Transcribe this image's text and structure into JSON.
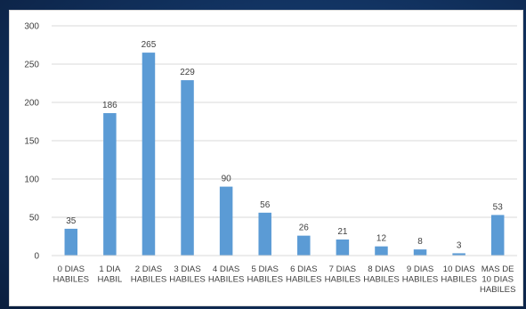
{
  "chart_data": {
    "type": "bar",
    "categories": [
      [
        "0 DIAS",
        "HABILES"
      ],
      [
        "1 DIA",
        "HABIL"
      ],
      [
        "2 DIAS",
        "HABILES"
      ],
      [
        "3 DIAS",
        "HABILES"
      ],
      [
        "4 DIAS",
        "HABILES"
      ],
      [
        "5 DIAS",
        "HABILES"
      ],
      [
        "6 DIAS",
        "HABILES"
      ],
      [
        "7 DIAS",
        "HABILES"
      ],
      [
        "8 DIAS",
        "HABILES"
      ],
      [
        "9 DIAS",
        "HABILES"
      ],
      [
        "10 DIAS",
        "HABILES"
      ],
      [
        "MAS DE",
        "10 DIAS",
        "HABILES"
      ]
    ],
    "values": [
      35,
      186,
      265,
      229,
      90,
      56,
      26,
      21,
      12,
      8,
      3,
      53
    ],
    "ylim": [
      0,
      300
    ],
    "yticks": [
      0,
      50,
      100,
      150,
      200,
      250,
      300
    ],
    "grid": true,
    "legend": "none",
    "bar_color": "#5b9bd5",
    "grid_color": "#d9d9d9"
  }
}
